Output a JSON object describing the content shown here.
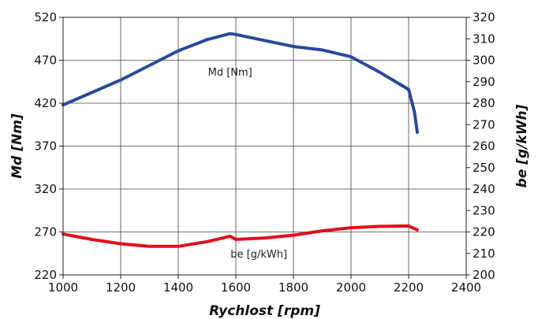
{
  "chart_data": {
    "type": "line",
    "xlabel": "Rychlost [rpm]",
    "ylabel_left": "Md [Nm]",
    "ylabel_right": "be [g/kWh]",
    "xlim": [
      1000,
      2400
    ],
    "ylim_left": [
      220,
      520
    ],
    "ylim_right": [
      200,
      320
    ],
    "x_ticks": [
      "1000",
      "1200",
      "1400",
      "1600",
      "1800",
      "2000",
      "2200",
      "2400"
    ],
    "y_left_ticks": [
      "520",
      "470",
      "420",
      "370",
      "320",
      "270",
      "220"
    ],
    "y_right_ticks": [
      "320",
      "310",
      "300",
      "290",
      "280",
      "270",
      "260",
      "250",
      "240",
      "230",
      "220",
      "210",
      "200"
    ],
    "grid": true,
    "series": [
      {
        "name": "Md [Nm]",
        "axis": "left",
        "color": "#2a4a9a",
        "points": [
          [
            1000,
            418
          ],
          [
            1200,
            447
          ],
          [
            1400,
            481
          ],
          [
            1500,
            494
          ],
          [
            1580,
            501
          ],
          [
            1600,
            500
          ],
          [
            1700,
            493
          ],
          [
            1800,
            486
          ],
          [
            1900,
            482
          ],
          [
            2000,
            474
          ],
          [
            2100,
            456
          ],
          [
            2190,
            438
          ],
          [
            2200,
            436
          ],
          [
            2220,
            410
          ],
          [
            2230,
            386
          ]
        ]
      },
      {
        "name": "be [g/kWh]",
        "axis": "right",
        "color": "#e0101a",
        "points": [
          [
            1000,
            219
          ],
          [
            1100,
            216.5
          ],
          [
            1200,
            214.5
          ],
          [
            1300,
            213.3
          ],
          [
            1400,
            213.3
          ],
          [
            1500,
            215.5
          ],
          [
            1580,
            218
          ],
          [
            1600,
            216.5
          ],
          [
            1700,
            217.2
          ],
          [
            1800,
            218.5
          ],
          [
            1900,
            220.5
          ],
          [
            2000,
            222
          ],
          [
            2100,
            222.6
          ],
          [
            2200,
            222.8
          ],
          [
            2230,
            221
          ]
        ]
      }
    ]
  }
}
